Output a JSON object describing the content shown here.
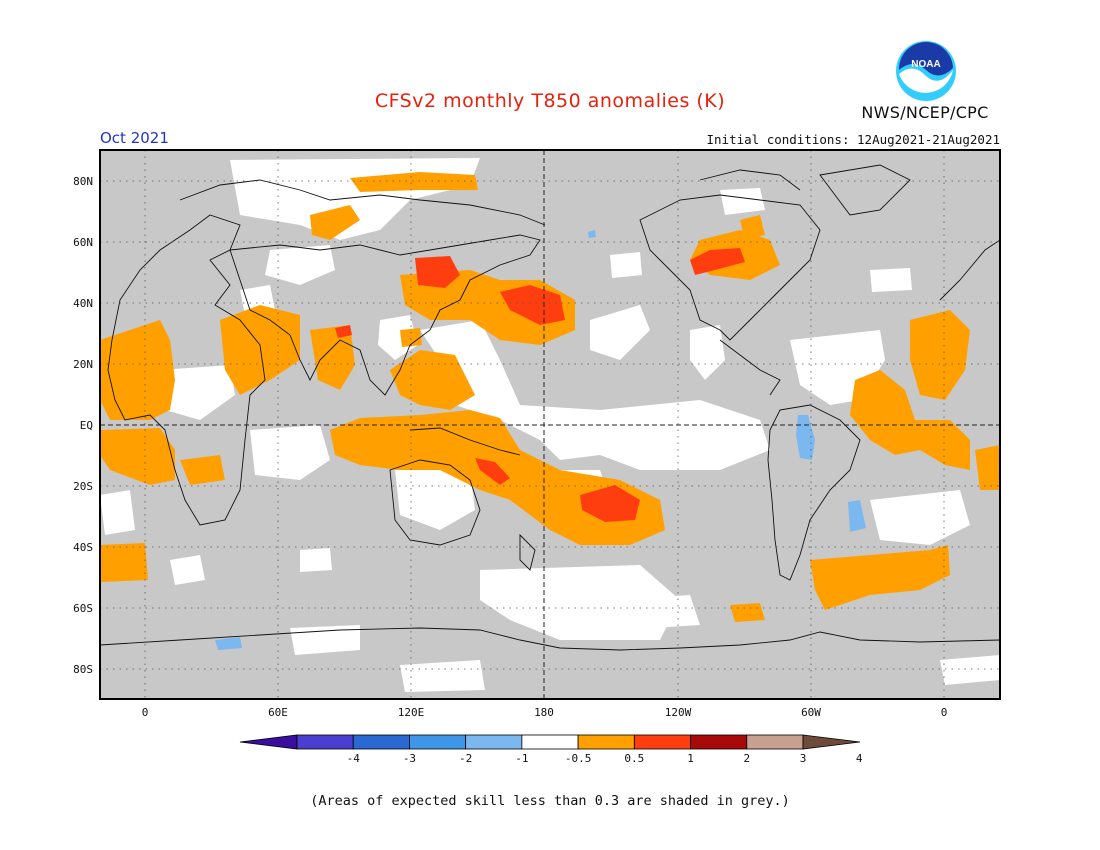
{
  "title": "CFSv2 monthly T850 anomalies (K)",
  "month": "Oct 2021",
  "initial_conditions": "Initial conditions: 12Aug2021-21Aug2021",
  "agency": "NWS/NCEP/CPC",
  "logo_text": "NOAA",
  "lat_labels": [
    "80N",
    "60N",
    "40N",
    "20N",
    "EQ",
    "20S",
    "40S",
    "60S",
    "80S"
  ],
  "lon_labels": [
    "0",
    "60E",
    "120E",
    "180",
    "120W",
    "60W",
    "0"
  ],
  "colorbar": {
    "labels": [
      "-4",
      "-3",
      "-2",
      "-1",
      "-0.5",
      "0.5",
      "1",
      "2",
      "3",
      "4"
    ],
    "colors": [
      "#3a0fa0",
      "#4a3fd0",
      "#2a68d2",
      "#3f95e8",
      "#7cb8f0",
      "#ffffff",
      "#ffa000",
      "#ff3e10",
      "#a80a0a",
      "#c8a090",
      "#6e4a3a"
    ]
  },
  "colors": {
    "skill_grey": "#c8c8c8",
    "orange": "#ffa000",
    "red": "#ff3e10",
    "blue": "#7cb8f0",
    "title_red": "#e8200c",
    "month_blue": "#2233cc"
  },
  "footnote": "(Areas of expected skill less than 0.3 are shaded in grey.)"
}
